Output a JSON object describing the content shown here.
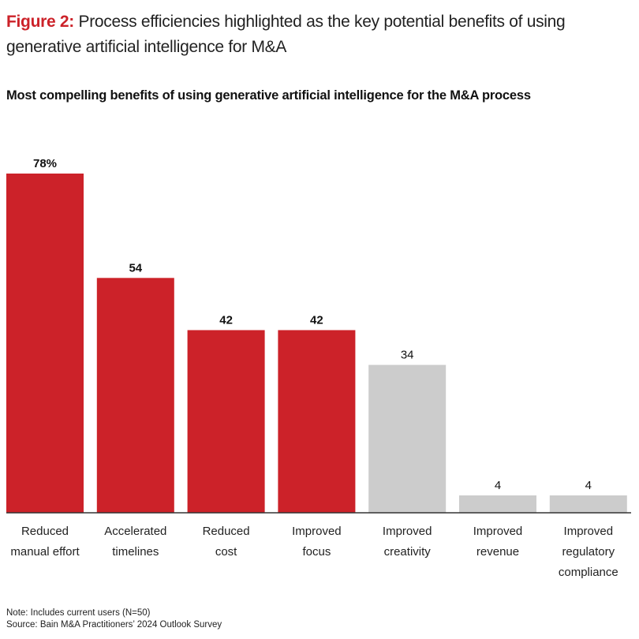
{
  "figure": {
    "label": "Figure 2:",
    "title": "Process efficiencies highlighted as the key potential benefits of using generative artificial intelligence for M&A",
    "subtitle": "Most compelling benefits of using generative artificial intelligence for the M&A process"
  },
  "notes": {
    "note": "Note: Includes current users (N=50)",
    "source": "Source: Bain M&A Practitioners’ 2024 Outlook Survey"
  },
  "colors": {
    "highlight": "#cc2229",
    "muted": "#cccccc",
    "axis": "#333333"
  },
  "chart_data": {
    "type": "bar",
    "title": "Most compelling benefits of using generative artificial intelligence for the M&A process",
    "categories": [
      [
        "Reduced",
        "manual effort"
      ],
      [
        "Accelerated",
        "timelines"
      ],
      [
        "Reduced",
        "cost"
      ],
      [
        "Improved",
        "focus"
      ],
      [
        "Improved",
        "creativity"
      ],
      [
        "Improved",
        "revenue"
      ],
      [
        "Improved",
        "regulatory",
        "compliance"
      ]
    ],
    "values": [
      78,
      54,
      42,
      42,
      34,
      4,
      4
    ],
    "value_labels": [
      "78%",
      "54",
      "42",
      "42",
      "34",
      "4",
      "4"
    ],
    "highlighted": [
      true,
      true,
      true,
      true,
      false,
      false,
      false
    ],
    "xlabel": "",
    "ylabel": "",
    "ylim": [
      0,
      78
    ],
    "grid": false,
    "legend": "none"
  }
}
